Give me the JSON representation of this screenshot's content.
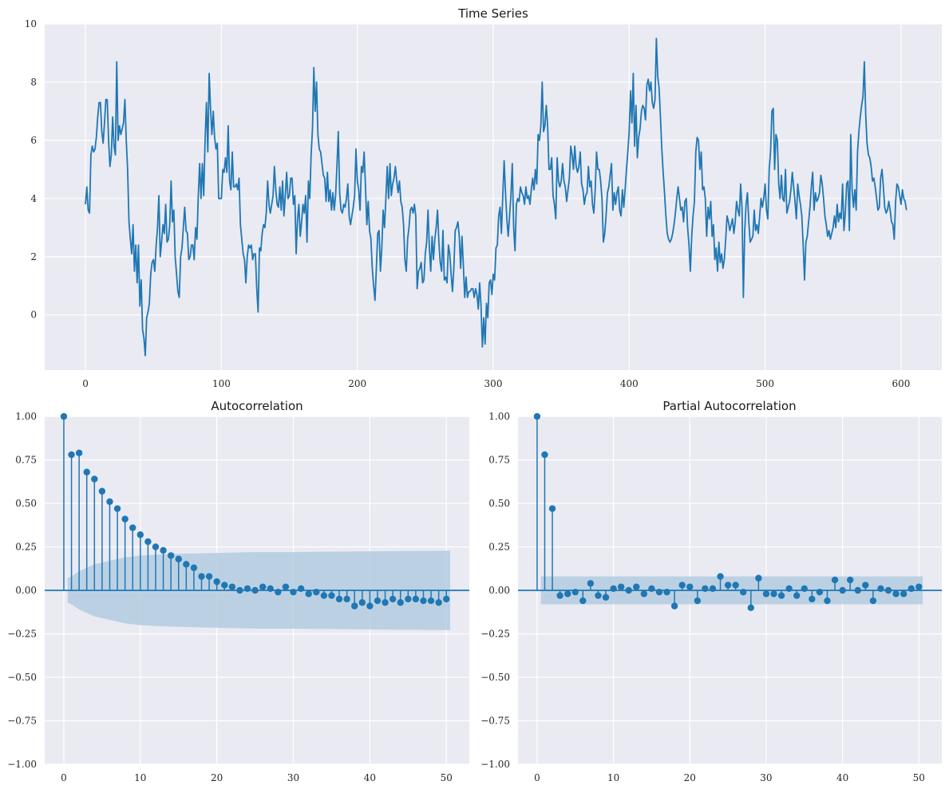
{
  "figure": {
    "colors": {
      "background": "#eaeaf2",
      "grid": "#ffffff",
      "line": "#1f77b4",
      "band": "#b3cde0"
    }
  },
  "chart_data": [
    {
      "type": "line",
      "title": "Time Series",
      "xlabel": "",
      "ylabel": "",
      "x_range": [
        0,
        599
      ],
      "xlim": [
        -30,
        630
      ],
      "ylim": [
        -1.9,
        10
      ],
      "xticks": [
        0,
        100,
        200,
        300,
        400,
        500,
        600
      ],
      "yticks": [
        0,
        2,
        4,
        6,
        8,
        10
      ],
      "grid": true,
      "series": [
        {
          "x_start": 0,
          "x_step": 1,
          "values": [
            3.8,
            4.4,
            3.6,
            3.5,
            5.5,
            5.8,
            5.6,
            5.7,
            6.1,
            6.8,
            7.3,
            7.3,
            6.3,
            5.9,
            6.6,
            7.4,
            7.4,
            6.0,
            5.1,
            5.5,
            6.8,
            5.8,
            5.5,
            8.7,
            6.0,
            6.5,
            6.2,
            6.4,
            6.6,
            7.4,
            6.0,
            5.0,
            3.2,
            2.6,
            2.1,
            3.1,
            1.5,
            2.4,
            1.1,
            2.4,
            0.3,
            1.2,
            -0.5,
            -0.8,
            -1.4,
            -0.1,
            0.1,
            0.4,
            1.4,
            1.8,
            1.9,
            1.5,
            2.4,
            3.0,
            4.1,
            2.0,
            2.5,
            3.1,
            2.8,
            3.8,
            2.5,
            2.6,
            3.1,
            4.6,
            3.2,
            3.6,
            2.0,
            1.4,
            0.8,
            0.6,
            2.0,
            2.3,
            3.0,
            3.7,
            2.9,
            2.8,
            1.9,
            2.0,
            2.4,
            2.4,
            1.9,
            3.0,
            2.6,
            4.1,
            5.2,
            4.0,
            5.2,
            4.1,
            6.0,
            7.3,
            5.6,
            8.3,
            7.1,
            6.2,
            7.0,
            6.1,
            5.7,
            5.9,
            4.0,
            4.0,
            4.0,
            5.0,
            4.9,
            5.4,
            4.9,
            6.5,
            4.6,
            4.3,
            5.6,
            4.4,
            4.4,
            4.5,
            4.3,
            4.7,
            3.1,
            2.6,
            2.1,
            1.9,
            1.1,
            2.0,
            2.4,
            2.3,
            2.4,
            1.9,
            2.1,
            2.1,
            0.9,
            0.1,
            2.3,
            2.2,
            2.8,
            3.1,
            3.0,
            3.5,
            4.6,
            3.8,
            3.5,
            3.8,
            4.1,
            5.1,
            4.3,
            3.8,
            3.7,
            4.4,
            3.6,
            4.6,
            3.4,
            4.1,
            4.9,
            4.0,
            4.1,
            4.7,
            4.7,
            3.8,
            4.1,
            2.1,
            3.3,
            3.8,
            2.7,
            3.2,
            3.8,
            3.5,
            4.1,
            2.5,
            4.6,
            4.0,
            5.5,
            6.4,
            8.5,
            7.0,
            8.0,
            6.2,
            5.7,
            5.6,
            5.2,
            4.8,
            4.7,
            3.9,
            4.9,
            3.9,
            4.3,
            3.6,
            4.2,
            3.6,
            4.1,
            5.1,
            6.3,
            4.2,
            3.6,
            3.5,
            3.8,
            3.7,
            4.0,
            4.5,
            3.4,
            3.1,
            3.4,
            3.7,
            4.1,
            5.7,
            4.6,
            4.3,
            3.6,
            5.1,
            4.9,
            5.6,
            4.4,
            3.1,
            3.9,
            2.9,
            2.6,
            1.6,
            1.0,
            0.5,
            1.6,
            2.8,
            2.9,
            1.5,
            2.3,
            3.6,
            3.0,
            4.0,
            5.1,
            4.0,
            5.2,
            4.1,
            4.5,
            4.7,
            5.1,
            4.6,
            4.2,
            4.6,
            3.9,
            3.7,
            3.1,
            1.9,
            1.5,
            2.6,
            3.0,
            3.6,
            3.7,
            3.5,
            3.8,
            3.4,
            0.9,
            1.5,
            1.6,
            1.8,
            1.1,
            1.2,
            2.1,
            2.5,
            3.6,
            2.3,
            1.5,
            2.7,
            1.9,
            2.6,
            3.0,
            3.6,
            2.5,
            1.8,
            1.5,
            2.9,
            1.2,
            1.3,
            1.1,
            2.4,
            2.1,
            1.4,
            0.8,
            1.6,
            2.9,
            3.0,
            3.2,
            2.7,
            1.6,
            2.7,
            1.7,
            0.6,
            1.3,
            0.6,
            0.8,
            0.8,
            0.9,
            0.9,
            0.6,
            0.9,
            0.7,
            0.2,
            1.1,
            0.3,
            -1.1,
            -0.1,
            -1.0,
            0.4,
            -0.1,
            1.1,
            1.2,
            0.7,
            1.4,
            1.2,
            2.3,
            2.4,
            3.4,
            3.7,
            2.8,
            4.1,
            5.3,
            4.2,
            3.3,
            2.7,
            3.4,
            4.1,
            5.2,
            3.0,
            2.2,
            3.8,
            4.0,
            3.9,
            4.4,
            4.2,
            4.1,
            3.8,
            4.4,
            4.0,
            4.1,
            3.8,
            4.3,
            4.7,
            4.3,
            5.0,
            4.5,
            6.2,
            6.0,
            6.5,
            8.0,
            6.3,
            6.5,
            7.2,
            6.5,
            5.0,
            5.0,
            5.4,
            4.1,
            3.8,
            3.3,
            5.4,
            4.6,
            4.4,
            4.6,
            5.2,
            4.6,
            4.4,
            3.9,
            4.3,
            4.7,
            5.8,
            5.5,
            5.0,
            5.8,
            5.1,
            4.9,
            5.1,
            5.6,
            4.5,
            4.3,
            3.8,
            4.1,
            4.2,
            5.1,
            4.4,
            4.6,
            3.8,
            3.5,
            4.3,
            5.6,
            5.0,
            5.0,
            4.6,
            4.0,
            2.5,
            2.8,
            3.4,
            4.2,
            4.4,
            4.8,
            5.2,
            3.6,
            4.2,
            3.8,
            4.2,
            4.4,
            3.6,
            3.4,
            4.3,
            3.7,
            4.3,
            5.0,
            5.6,
            6.3,
            7.7,
            6.6,
            8.3,
            5.8,
            7.2,
            5.4,
            6.1,
            6.4,
            7.0,
            7.2,
            7.1,
            6.7,
            7.9,
            8.1,
            7.7,
            8.0,
            7.3,
            7.1,
            7.4,
            9.5,
            8.2,
            7.8,
            6.8,
            5.7,
            4.9,
            4.2,
            3.4,
            2.8,
            2.6,
            2.5,
            2.6,
            2.8,
            3.1,
            3.5,
            4.0,
            4.4,
            4.0,
            3.6,
            3.7,
            3.2,
            3.9,
            4.0,
            3.0,
            2.4,
            1.5,
            2.7,
            3.4,
            3.9,
            5.6,
            6.1,
            6.0,
            5.0,
            5.6,
            4.3,
            4.4,
            4.0,
            2.7,
            3.7,
            3.3,
            3.9,
            2.7,
            3.1,
            1.9,
            2.3,
            1.5,
            2.5,
            1.8,
            2.1,
            1.6,
            1.9,
            2.6,
            3.4,
            3.2,
            2.9,
            3.1,
            3.3,
            2.8,
            3.2,
            3.9,
            3.6,
            3.4,
            4.5,
            3.7,
            0.6,
            2.9,
            3.8,
            4.2,
            3.2,
            2.5,
            2.6,
            2.7,
            3.6,
            2.9,
            3.1,
            2.8,
            3.4,
            4.0,
            3.7,
            4.0,
            4.5,
            3.6,
            3.3,
            5.0,
            5.6,
            7.0,
            7.1,
            5.0,
            6.2,
            6.0,
            4.5,
            4.0,
            4.8,
            4.0,
            3.9,
            5.0,
            3.5,
            3.7,
            3.9,
            4.3,
            4.9,
            4.4,
            3.9,
            3.3,
            4.5,
            4.1,
            3.8,
            3.4,
            2.4,
            1.2,
            2.5,
            2.7,
            3.2,
            3.7,
            4.4,
            4.9,
            3.6,
            4.2,
            3.9,
            4.0,
            4.2,
            4.8,
            4.5,
            4.0,
            3.4,
            3.1,
            2.7,
            2.9,
            2.6,
            2.8,
            3.0,
            3.4,
            3.0,
            3.8,
            3.2,
            3.5,
            3.3,
            4.5,
            2.9,
            3.5,
            4.5,
            4.6,
            2.9,
            6.2,
            4.3,
            3.7,
            4.3,
            3.6,
            5.6,
            6.3,
            6.8,
            7.2,
            7.5,
            8.7,
            6.9,
            5.9,
            5.5,
            5.4,
            5.1,
            4.6,
            4.7,
            4.4,
            4.0,
            3.6,
            3.7,
            4.7,
            5.0,
            4.4,
            3.7,
            3.5,
            3.6,
            3.9,
            3.6,
            3.2,
            3.1,
            2.6,
            3.9,
            4.5,
            4.4,
            4.1,
            3.8,
            4.3,
            4.0,
            3.9,
            3.6
          ]
        }
      ]
    },
    {
      "type": "stem",
      "title": "Autocorrelation",
      "xlabel": "",
      "ylabel": "",
      "xlim": [
        -2.5,
        53
      ],
      "ylim": [
        -1.0,
        1.0
      ],
      "xticks": [
        0,
        10,
        20,
        30,
        40,
        50
      ],
      "yticks": [
        -1.0,
        -0.75,
        -0.5,
        -0.25,
        0.0,
        0.25,
        0.5,
        0.75,
        1.0
      ],
      "ytick_labels": [
        "−1.00",
        "−0.75",
        "−0.50",
        "−0.25",
        "0.00",
        "0.25",
        "0.50",
        "0.75",
        "1.00"
      ],
      "grid": true,
      "lags": [
        0,
        1,
        2,
        3,
        4,
        5,
        6,
        7,
        8,
        9,
        10,
        11,
        12,
        13,
        14,
        15,
        16,
        17,
        18,
        19,
        20,
        21,
        22,
        23,
        24,
        25,
        26,
        27,
        28,
        29,
        30,
        31,
        32,
        33,
        34,
        35,
        36,
        37,
        38,
        39,
        40,
        41,
        42,
        43,
        44,
        45,
        46,
        47,
        48,
        49,
        50
      ],
      "values": [
        1.0,
        0.78,
        0.79,
        0.68,
        0.64,
        0.57,
        0.51,
        0.47,
        0.41,
        0.36,
        0.32,
        0.28,
        0.25,
        0.23,
        0.2,
        0.18,
        0.15,
        0.13,
        0.08,
        0.08,
        0.05,
        0.03,
        0.02,
        0.0,
        0.01,
        0.0,
        0.02,
        0.01,
        -0.01,
        0.02,
        -0.01,
        0.01,
        -0.02,
        -0.01,
        -0.03,
        -0.03,
        -0.05,
        -0.05,
        -0.09,
        -0.07,
        -0.09,
        -0.06,
        -0.07,
        -0.05,
        -0.07,
        -0.05,
        -0.05,
        -0.06,
        -0.06,
        -0.07,
        -0.05
      ],
      "confidence_band": {
        "lags": [
          0.5,
          1,
          2,
          3,
          4,
          5,
          6,
          8,
          10,
          12,
          15,
          20,
          25,
          30,
          40,
          50,
          50.5
        ],
        "upper": [
          0.07,
          0.08,
          0.11,
          0.13,
          0.15,
          0.16,
          0.17,
          0.19,
          0.2,
          0.205,
          0.21,
          0.215,
          0.22,
          0.22,
          0.225,
          0.228,
          0.228
        ]
      }
    },
    {
      "type": "stem",
      "title": "Partial Autocorrelation",
      "xlabel": "",
      "ylabel": "",
      "xlim": [
        -2.5,
        53
      ],
      "ylim": [
        -1.0,
        1.0
      ],
      "xticks": [
        0,
        10,
        20,
        30,
        40,
        50
      ],
      "yticks": [
        -1.0,
        -0.75,
        -0.5,
        -0.25,
        0.0,
        0.25,
        0.5,
        0.75,
        1.0
      ],
      "ytick_labels": [
        "−1.00",
        "−0.75",
        "−0.50",
        "−0.25",
        "0.00",
        "0.25",
        "0.50",
        "0.75",
        "1.00"
      ],
      "grid": true,
      "lags": [
        0,
        1,
        2,
        3,
        4,
        5,
        6,
        7,
        8,
        9,
        10,
        11,
        12,
        13,
        14,
        15,
        16,
        17,
        18,
        19,
        20,
        21,
        22,
        23,
        24,
        25,
        26,
        27,
        28,
        29,
        30,
        31,
        32,
        33,
        34,
        35,
        36,
        37,
        38,
        39,
        40,
        41,
        42,
        43,
        44,
        45,
        46,
        47,
        48,
        49,
        50
      ],
      "values": [
        1.0,
        0.78,
        0.47,
        -0.03,
        -0.02,
        -0.01,
        -0.06,
        0.04,
        -0.03,
        -0.04,
        0.01,
        0.02,
        0.0,
        0.02,
        -0.02,
        0.01,
        -0.01,
        -0.01,
        -0.09,
        0.03,
        0.02,
        -0.06,
        0.01,
        0.01,
        0.08,
        0.03,
        0.03,
        -0.01,
        -0.1,
        0.07,
        -0.02,
        -0.02,
        -0.03,
        0.01,
        -0.03,
        0.01,
        -0.05,
        -0.01,
        -0.06,
        0.06,
        0.0,
        0.06,
        0.0,
        0.03,
        -0.06,
        0.01,
        0.0,
        -0.02,
        -0.02,
        0.01,
        0.02
      ],
      "confidence_band": {
        "lags": [
          0.5,
          50.5
        ],
        "upper": [
          0.08,
          0.08
        ]
      }
    }
  ]
}
